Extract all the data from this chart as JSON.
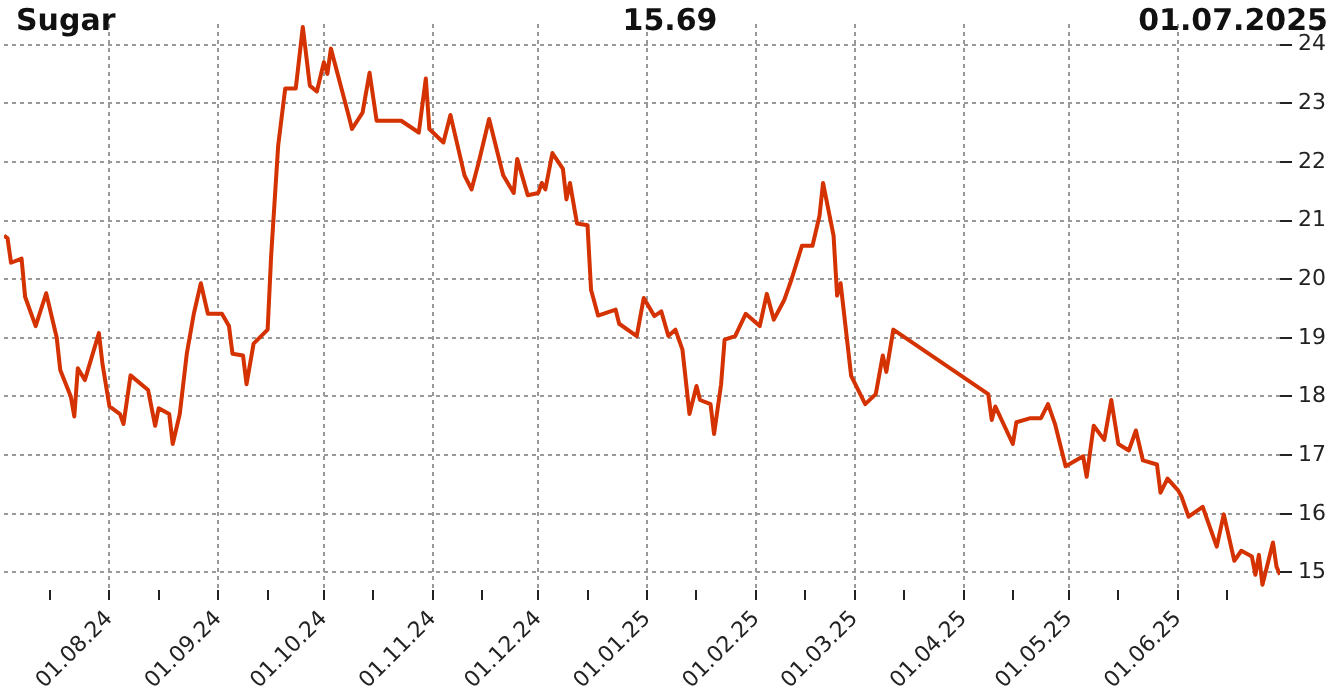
{
  "chart_data": {
    "type": "line",
    "title": "Sugar",
    "subtitle": "15.69",
    "annotations": [
      "01.07.2025"
    ],
    "x": [
      "2024-07-02",
      "2024-07-03",
      "2024-07-04",
      "2024-07-07",
      "2024-07-08",
      "2024-07-11",
      "2024-07-14",
      "2024-07-17",
      "2024-07-18",
      "2024-07-21",
      "2024-07-22",
      "2024-07-23",
      "2024-07-25",
      "2024-07-29",
      "2024-07-30",
      "2024-08-01",
      "2024-08-04",
      "2024-08-05",
      "2024-08-07",
      "2024-08-12",
      "2024-08-14",
      "2024-08-15",
      "2024-08-18",
      "2024-08-19",
      "2024-08-21",
      "2024-08-23",
      "2024-08-25",
      "2024-08-27",
      "2024-08-29",
      "2024-09-02",
      "2024-09-04",
      "2024-09-05",
      "2024-09-08",
      "2024-09-09",
      "2024-09-11",
      "2024-09-15",
      "2024-09-16",
      "2024-09-18",
      "2024-09-20",
      "2024-09-23",
      "2024-09-25",
      "2024-09-27",
      "2024-09-29",
      "2024-10-01",
      "2024-10-02",
      "2024-10-03",
      "2024-10-08",
      "2024-10-09",
      "2024-10-12",
      "2024-10-14",
      "2024-10-16",
      "2024-10-23",
      "2024-10-28",
      "2024-10-30",
      "2024-10-31",
      "2024-11-04",
      "2024-11-06",
      "2024-11-10",
      "2024-11-12",
      "2024-11-14",
      "2024-11-17",
      "2024-11-21",
      "2024-11-24",
      "2024-11-25",
      "2024-11-28",
      "2024-12-01",
      "2024-12-02",
      "2024-12-03",
      "2024-12-05",
      "2024-12-08",
      "2024-12-09",
      "2024-12-10",
      "2024-12-12",
      "2024-12-15",
      "2024-12-16",
      "2024-12-18",
      "2024-12-23",
      "2024-12-24",
      "2024-12-29",
      "2024-12-31",
      "2025-01-03",
      "2025-01-05",
      "2025-01-07",
      "2025-01-09",
      "2025-01-11",
      "2025-01-13",
      "2025-01-15",
      "2025-01-16",
      "2025-01-19",
      "2025-01-20",
      "2025-01-22",
      "2025-01-23",
      "2025-01-26",
      "2025-01-29",
      "2025-02-02",
      "2025-02-04",
      "2025-02-06",
      "2025-02-09",
      "2025-02-11",
      "2025-02-14",
      "2025-02-17",
      "2025-02-19",
      "2025-02-20",
      "2025-02-23",
      "2025-02-24",
      "2025-02-25",
      "2025-02-28",
      "2025-03-04",
      "2025-03-07",
      "2025-03-09",
      "2025-03-10",
      "2025-03-12",
      "2025-04-08",
      "2025-04-09",
      "2025-04-10",
      "2025-04-15",
      "2025-04-16",
      "2025-04-20",
      "2025-04-23",
      "2025-04-25",
      "2025-04-27",
      "2025-04-30",
      "2025-05-05",
      "2025-05-06",
      "2025-05-08",
      "2025-05-11",
      "2025-05-13",
      "2025-05-15",
      "2025-05-18",
      "2025-05-20",
      "2025-05-22",
      "2025-05-26",
      "2025-05-27",
      "2025-05-29",
      "2025-06-01",
      "2025-06-02",
      "2025-06-04",
      "2025-06-08",
      "2025-06-12",
      "2025-06-14",
      "2025-06-17",
      "2025-06-19",
      "2025-06-22",
      "2025-06-23",
      "2025-06-24",
      "2025-06-25",
      "2025-06-28",
      "2025-06-29",
      "2025-06-30"
    ],
    "series": [
      {
        "color": "#d43200",
        "values": [
          20.74,
          20.7,
          20.28,
          20.35,
          19.7,
          19.2,
          19.76,
          19.0,
          18.45,
          18.0,
          17.66,
          18.48,
          18.28,
          19.08,
          18.56,
          17.83,
          17.7,
          17.53,
          18.36,
          18.11,
          17.5,
          17.8,
          17.7,
          17.19,
          17.7,
          18.73,
          19.41,
          19.93,
          19.41,
          19.41,
          19.2,
          18.73,
          18.7,
          18.21,
          18.9,
          19.14,
          20.4,
          22.28,
          23.25,
          23.25,
          24.3,
          23.3,
          23.2,
          23.7,
          23.5,
          23.93,
          22.8,
          22.56,
          22.84,
          23.52,
          22.7,
          22.7,
          22.5,
          23.42,
          22.56,
          22.33,
          22.8,
          21.77,
          21.53,
          21.98,
          22.73,
          21.77,
          21.47,
          22.05,
          21.43,
          21.47,
          21.64,
          21.53,
          22.15,
          21.88,
          21.36,
          21.64,
          20.95,
          20.92,
          19.82,
          19.38,
          19.48,
          19.24,
          19.03,
          19.68,
          19.37,
          19.45,
          19.03,
          19.14,
          18.8,
          17.7,
          18.18,
          17.94,
          17.87,
          17.36,
          18.21,
          18.97,
          19.03,
          19.41,
          19.2,
          19.75,
          19.31,
          19.65,
          19.99,
          20.57,
          20.57,
          21.08,
          21.64,
          20.74,
          19.72,
          19.93,
          18.35,
          17.87,
          18.04,
          18.7,
          18.42,
          19.14,
          18.04,
          17.6,
          17.83,
          17.19,
          17.56,
          17.63,
          17.63,
          17.87,
          17.53,
          16.81,
          16.98,
          16.63,
          17.5,
          17.26,
          17.94,
          17.19,
          17.08,
          17.42,
          16.91,
          16.84,
          16.36,
          16.6,
          16.4,
          16.29,
          15.95,
          16.12,
          15.44,
          15.99,
          15.2,
          15.37,
          15.27,
          14.96,
          15.3,
          14.79,
          15.51,
          15.1,
          14.96
        ]
      }
    ],
    "xlim": [
      "2024-07-02",
      "2025-06-30"
    ],
    "xticks": [
      {
        "value": "2024-07-15",
        "label": null
      },
      {
        "value": "2024-08-01",
        "label": "01.08.24"
      },
      {
        "value": "2024-08-15",
        "label": null
      },
      {
        "value": "2024-09-01",
        "label": "01.09.24"
      },
      {
        "value": "2024-09-15",
        "label": null
      },
      {
        "value": "2024-10-01",
        "label": "01.10.24"
      },
      {
        "value": "2024-10-15",
        "label": null
      },
      {
        "value": "2024-11-01",
        "label": "01.11.24"
      },
      {
        "value": "2024-11-15",
        "label": null
      },
      {
        "value": "2024-12-01",
        "label": "01.12.24"
      },
      {
        "value": "2024-12-15",
        "label": null
      },
      {
        "value": "2025-01-01",
        "label": "01.01.25"
      },
      {
        "value": "2025-01-15",
        "label": null
      },
      {
        "value": "2025-02-01",
        "label": "01.02.25"
      },
      {
        "value": "2025-02-15",
        "label": null
      },
      {
        "value": "2025-03-01",
        "label": "01.03.25"
      },
      {
        "value": "2025-03-15",
        "label": null
      },
      {
        "value": "2025-04-01",
        "label": "01.04.25"
      },
      {
        "value": "2025-04-15",
        "label": null
      },
      {
        "value": "2025-05-01",
        "label": "01.05.25"
      },
      {
        "value": "2025-05-15",
        "label": null
      },
      {
        "value": "2025-06-01",
        "label": "01.06.25"
      },
      {
        "value": "2025-06-15",
        "label": null
      }
    ],
    "ylim": [
      14.7,
      24.35
    ],
    "yticks": [
      15,
      16,
      17,
      18,
      19,
      20,
      21,
      22,
      23,
      24
    ],
    "grid": true,
    "legend": false,
    "marker": "none"
  }
}
